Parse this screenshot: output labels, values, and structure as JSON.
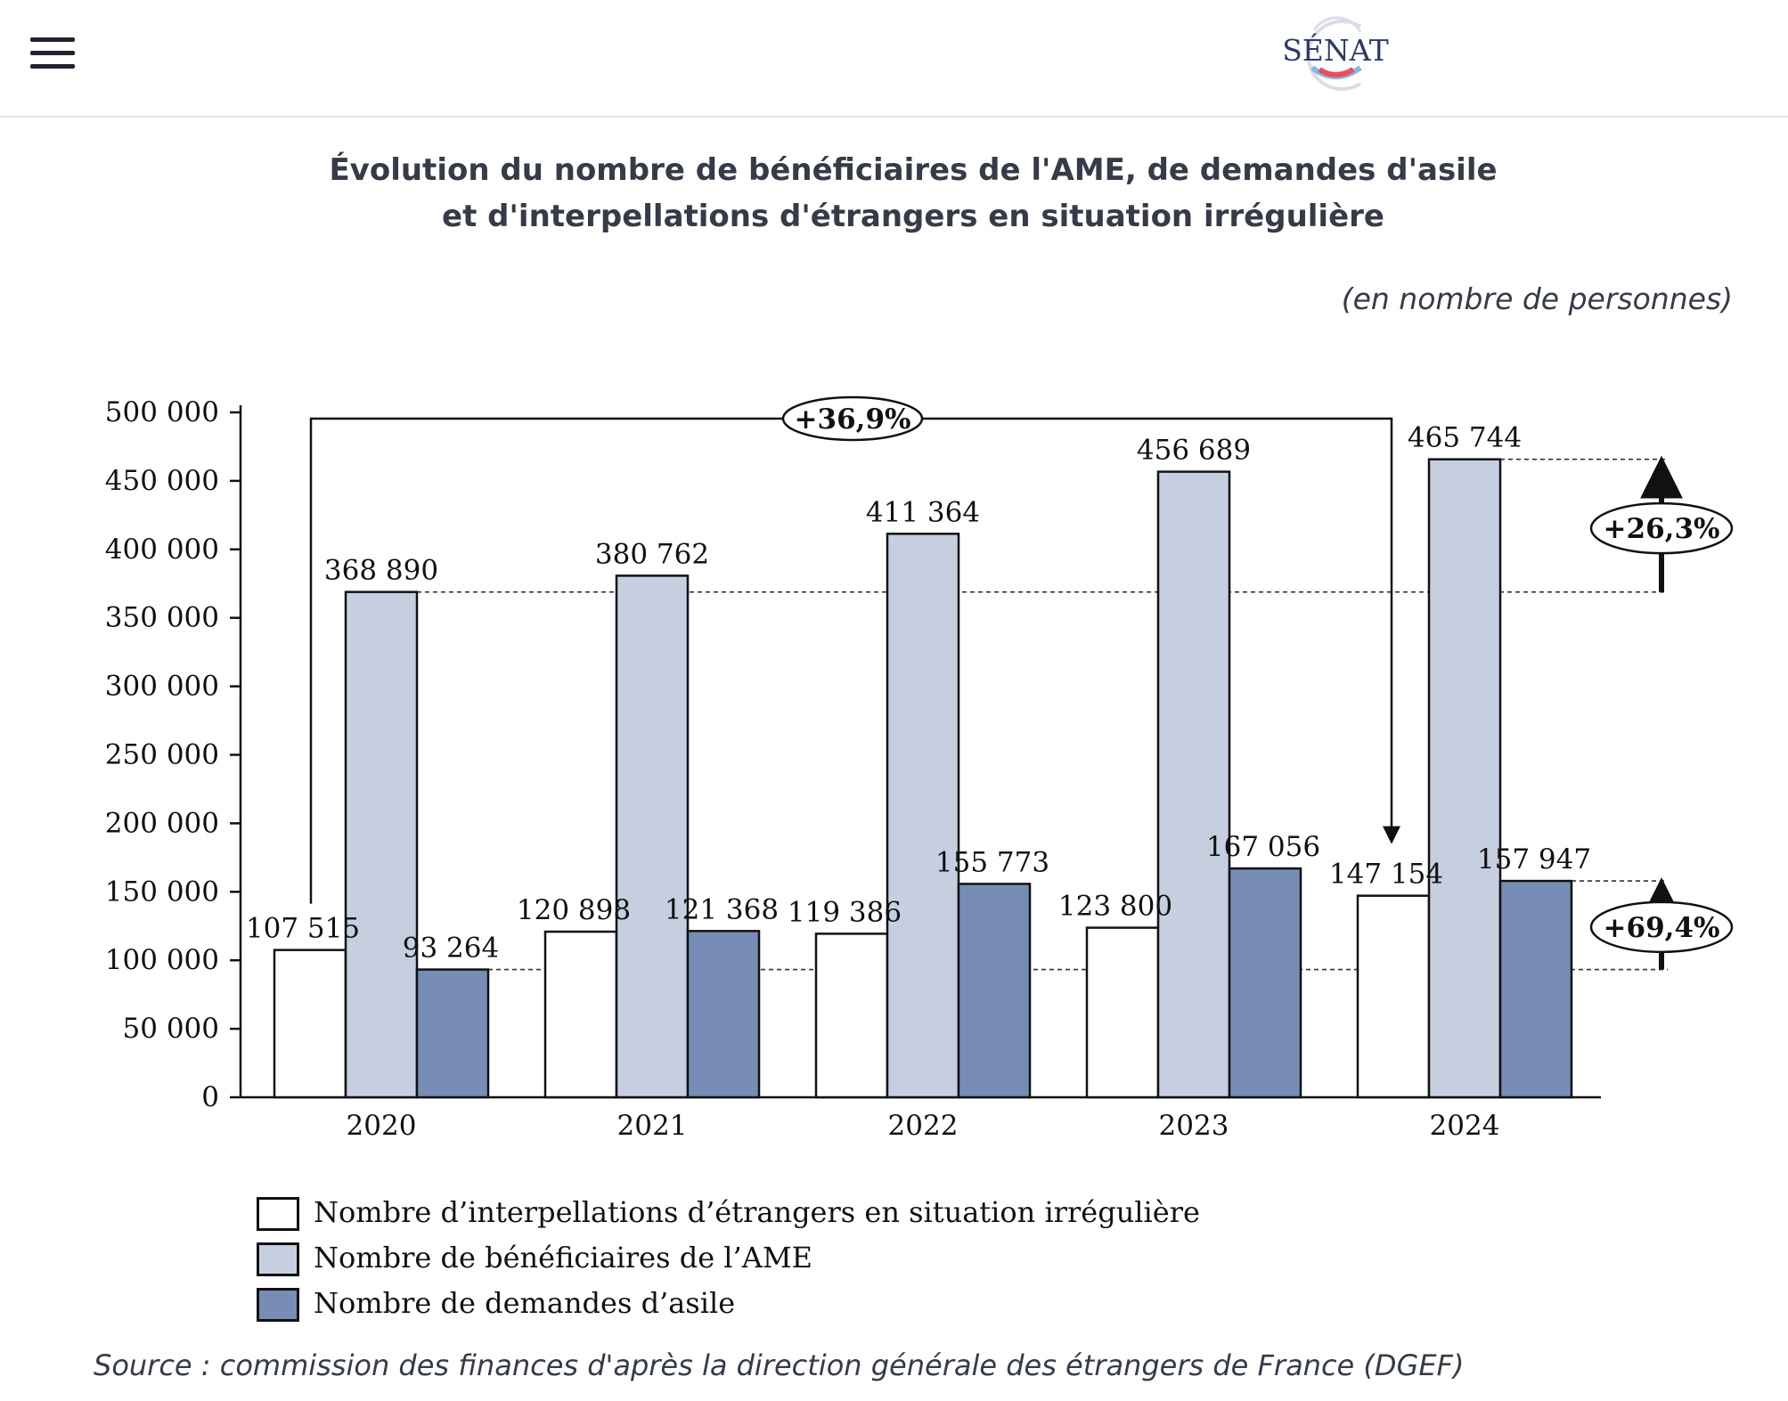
{
  "header": {
    "logo_text": "SÉNAT",
    "colors": {
      "logo_blue": "#2b3a67",
      "logo_red": "#e8505b",
      "logo_lightblue": "#89b4e6"
    }
  },
  "page": {
    "title_line1": "Évolution du nombre de bénéficiaires de l'AME, de demandes d'asile",
    "title_line2": "et d'interpellations d'étrangers en situation irrégulière",
    "unit": "(en nombre de personnes)",
    "source": "Source : commission des finances d'après la direction générale des étrangers de France (DGEF)"
  },
  "chart_data": {
    "type": "bar",
    "categories": [
      "2020",
      "2021",
      "2022",
      "2023",
      "2024"
    ],
    "ylim": [
      0,
      500000
    ],
    "yticks": [
      0,
      50000,
      100000,
      150000,
      200000,
      250000,
      300000,
      350000,
      400000,
      450000,
      500000
    ],
    "ytick_labels": [
      "0",
      "50 000",
      "100 000",
      "150 000",
      "200 000",
      "250 000",
      "300 000",
      "350 000",
      "400 000",
      "450 000",
      "500 000"
    ],
    "grid": false,
    "legend_position": "bottom-left",
    "series": [
      {
        "name": "Nombre d’interpellations d’étrangers en situation irrégulière",
        "color": "#ffffff",
        "values": [
          107515,
          120898,
          119386,
          123800,
          147154
        ],
        "labels": [
          "107 515",
          "120 898",
          "119 386",
          "123 800",
          "147 154"
        ]
      },
      {
        "name": "Nombre de bénéficiaires de l’AME",
        "color": "#c6cfe0",
        "values": [
          368890,
          380762,
          411364,
          456689,
          465744
        ],
        "labels": [
          "368 890",
          "380 762",
          "411 364",
          "456 689",
          "465 744"
        ]
      },
      {
        "name": "Nombre de demandes d’asile",
        "color": "#778db5",
        "values": [
          93264,
          121368,
          155773,
          167056,
          157947
        ],
        "labels": [
          "93 264",
          "121 368",
          "155 773",
          "167 056",
          "157 947"
        ]
      }
    ],
    "annotations": [
      {
        "text": "+36,9%",
        "from": [
          "2020",
          107515
        ],
        "to": [
          "2024",
          147154
        ],
        "series": "Nombre d’interpellations d’étrangers en situation irrégulière"
      },
      {
        "text": "+26,3%",
        "from_value": 368890,
        "to_value": 465744,
        "series": "Nombre de bénéficiaires de l’AME"
      },
      {
        "text": "+69,4%",
        "from_value": 93264,
        "to_value": 157947,
        "series": "Nombre de demandes d’asile"
      }
    ]
  }
}
